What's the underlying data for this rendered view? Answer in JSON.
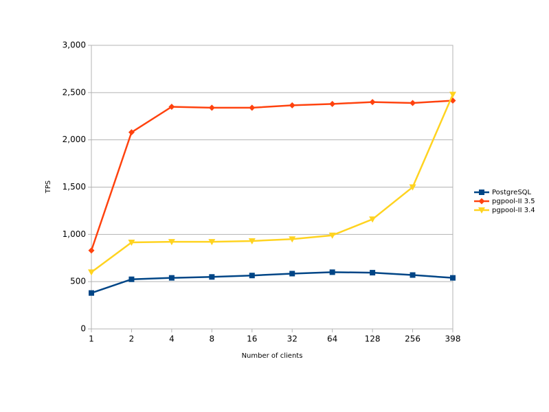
{
  "chart_data": {
    "type": "line",
    "x_label": "Number of clients",
    "y_label": "TPS",
    "categories": [
      "1",
      "2",
      "4",
      "8",
      "16",
      "32",
      "64",
      "128",
      "256",
      "398"
    ],
    "series": [
      {
        "name": "PostgreSQL",
        "color": "#004586",
        "marker": "square",
        "values": [
          380,
          525,
          540,
          550,
          565,
          585,
          600,
          595,
          570,
          540
        ]
      },
      {
        "name": "pgpool-II 3.5",
        "color": "#ff420e",
        "marker": "diamond",
        "values": [
          830,
          2080,
          2350,
          2340,
          2340,
          2365,
          2380,
          2400,
          2390,
          2415
        ]
      },
      {
        "name": "pgpool-II 3.4",
        "color": "#ffd320",
        "marker": "triangle-down",
        "values": [
          600,
          915,
          922,
          922,
          930,
          950,
          990,
          1160,
          1500,
          2480
        ]
      }
    ],
    "ylim": [
      0,
      3000
    ],
    "yticks": [
      0,
      500,
      {
        "value": 1000,
        "label": "1,000"
      },
      {
        "value": 1500,
        "label": "1,500"
      },
      {
        "value": 2000,
        "label": "2,000"
      },
      {
        "value": 2500,
        "label": "2,500"
      },
      {
        "value": 3000,
        "label": "3,000"
      }
    ],
    "grid": true,
    "legend": "right"
  }
}
